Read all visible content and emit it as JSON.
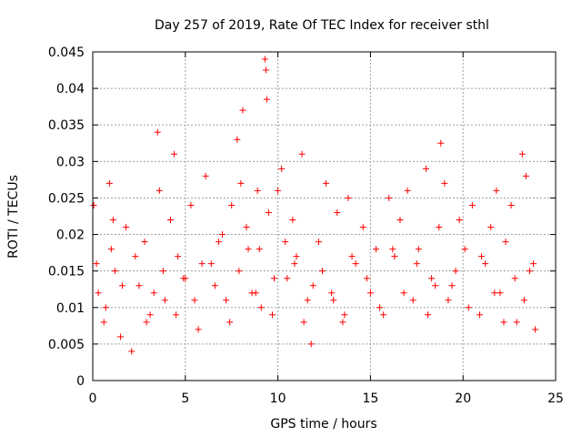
{
  "chart_data": {
    "type": "scatter",
    "title": "Day 257 of 2019, Rate Of TEC Index for receiver sthl",
    "xlabel": "GPS time / hours",
    "ylabel": "ROTI / TECUs",
    "xlim": [
      0,
      25
    ],
    "ylim": [
      0,
      0.045
    ],
    "xticks": [
      0,
      5,
      10,
      15,
      20,
      25
    ],
    "xtick_labels": [
      "0",
      "5",
      "10",
      "15",
      "20",
      "25"
    ],
    "yticks": [
      0,
      0.005,
      0.01,
      0.015,
      0.02,
      0.025,
      0.03,
      0.035,
      0.04,
      0.045
    ],
    "ytick_labels": [
      "0",
      "0.005",
      "0.01",
      "0.015",
      "0.02",
      "0.025",
      "0.03",
      "0.035",
      "0.04",
      "0.045"
    ],
    "grid": true,
    "marker": "+",
    "color": "#ff0000",
    "series": [
      {
        "name": "ROTI",
        "x": [
          0.05,
          0.3,
          0.6,
          0.9,
          1.0,
          1.2,
          1.5,
          1.8,
          2.1,
          2.5,
          2.8,
          3.1,
          3.5,
          3.6,
          3.9,
          4.2,
          4.4,
          4.6,
          5.0,
          5.3,
          5.7,
          6.1,
          6.4,
          6.8,
          7.2,
          7.5,
          7.8,
          8.0,
          8.1,
          8.3,
          8.6,
          8.9,
          9.0,
          9.3,
          9.35,
          9.4,
          9.5,
          9.7,
          10.0,
          10.2,
          10.5,
          10.8,
          11.0,
          11.3,
          11.6,
          11.8,
          12.2,
          12.6,
          12.9,
          13.2,
          13.5,
          13.8,
          14.2,
          14.6,
          15.0,
          15.3,
          15.7,
          16.0,
          16.3,
          16.6,
          17.0,
          17.3,
          17.6,
          18.0,
          18.3,
          18.7,
          18.8,
          19.0,
          19.4,
          19.8,
          20.1,
          20.5,
          20.9,
          21.2,
          21.5,
          21.8,
          22.0,
          22.3,
          22.6,
          22.9,
          23.2,
          23.4,
          23.6,
          23.9,
          0.2,
          0.7,
          1.1,
          1.6,
          2.3,
          2.9,
          3.3,
          3.8,
          4.5,
          4.9,
          5.5,
          5.9,
          6.6,
          7.0,
          7.4,
          7.9,
          8.4,
          8.8,
          9.1,
          9.8,
          10.4,
          10.9,
          11.4,
          11.9,
          12.4,
          13.0,
          13.6,
          14.0,
          14.8,
          15.5,
          16.2,
          16.8,
          17.5,
          18.1,
          18.5,
          19.2,
          19.6,
          20.3,
          21.0,
          21.7,
          22.2,
          22.8,
          23.3,
          23.8
        ],
        "y": [
          0.024,
          0.012,
          0.008,
          0.027,
          0.018,
          0.015,
          0.006,
          0.021,
          0.004,
          0.013,
          0.019,
          0.009,
          0.034,
          0.026,
          0.011,
          0.022,
          0.031,
          0.017,
          0.014,
          0.024,
          0.007,
          0.028,
          0.016,
          0.019,
          0.011,
          0.024,
          0.033,
          0.027,
          0.037,
          0.021,
          0.012,
          0.026,
          0.018,
          0.044,
          0.0425,
          0.0385,
          0.023,
          0.009,
          0.026,
          0.029,
          0.014,
          0.022,
          0.017,
          0.031,
          0.011,
          0.005,
          0.019,
          0.027,
          0.012,
          0.023,
          0.008,
          0.025,
          0.016,
          0.021,
          0.012,
          0.018,
          0.009,
          0.025,
          0.017,
          0.022,
          0.026,
          0.011,
          0.018,
          0.029,
          0.014,
          0.021,
          0.0325,
          0.027,
          0.013,
          0.022,
          0.018,
          0.024,
          0.009,
          0.016,
          0.021,
          0.026,
          0.012,
          0.019,
          0.024,
          0.008,
          0.031,
          0.028,
          0.015,
          0.007,
          0.016,
          0.01,
          0.022,
          0.013,
          0.017,
          0.008,
          0.012,
          0.015,
          0.009,
          0.014,
          0.011,
          0.016,
          0.013,
          0.02,
          0.008,
          0.015,
          0.018,
          0.012,
          0.01,
          0.014,
          0.019,
          0.016,
          0.008,
          0.013,
          0.015,
          0.011,
          0.009,
          0.017,
          0.014,
          0.01,
          0.018,
          0.012,
          0.016,
          0.009,
          0.013,
          0.011,
          0.015,
          0.01,
          0.017,
          0.012,
          0.008,
          0.014,
          0.011,
          0.016
        ]
      }
    ]
  }
}
